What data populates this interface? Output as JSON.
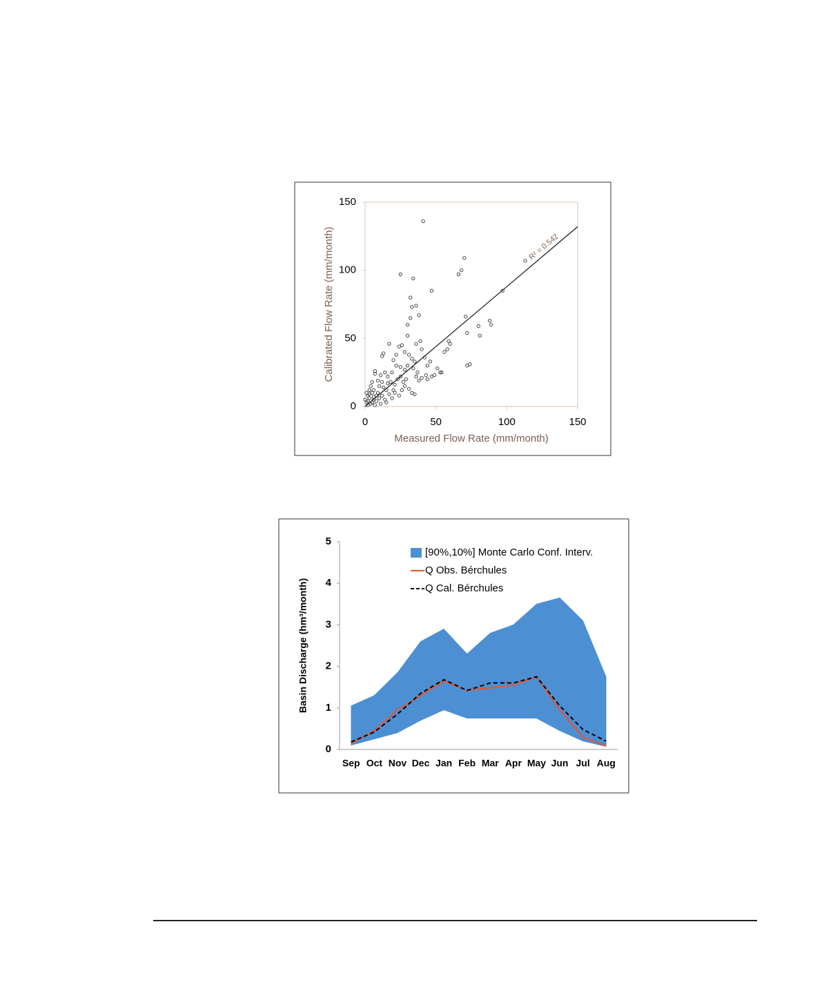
{
  "chart_data": [
    {
      "type": "scatter",
      "x_label": "Measured Flow Rate (mm/month)",
      "y_label": "Calibrated Flow Rate (mm/month)",
      "annotation": "R² = 0.542",
      "color": "#333333",
      "xlim": [
        0,
        150
      ],
      "ylim": [
        0,
        150
      ],
      "xticks": [
        0,
        50,
        100,
        150
      ],
      "yticks": [
        0,
        50,
        100,
        150
      ],
      "x": [
        41,
        25,
        34,
        47,
        66,
        68,
        70,
        113,
        97,
        32,
        33,
        36,
        30,
        32,
        38,
        71,
        80,
        88,
        89,
        81,
        72,
        74,
        72,
        59,
        60,
        58,
        56,
        51,
        53,
        54,
        46,
        44,
        42,
        40,
        39,
        36,
        30,
        24,
        26,
        22,
        17,
        13,
        12,
        7,
        7,
        20,
        22,
        25,
        28,
        31,
        33,
        35,
        28,
        36,
        38,
        40,
        43,
        44,
        47,
        49,
        28,
        26,
        24,
        20,
        18,
        16,
        14,
        12,
        10,
        9,
        8,
        6,
        5,
        4,
        3,
        2,
        1,
        2,
        3,
        4,
        5,
        6,
        8,
        10,
        12,
        14,
        15,
        17,
        19,
        21,
        23,
        25,
        27,
        29,
        31,
        33,
        35,
        15,
        11,
        7,
        1,
        0,
        2,
        9,
        11,
        13,
        16,
        19,
        21,
        5,
        3,
        6,
        30,
        34,
        37
      ],
      "values": [
        136,
        97,
        94,
        85,
        97,
        100,
        109,
        107,
        85,
        80,
        73,
        74,
        60,
        65,
        67,
        66,
        59,
        63,
        60,
        52,
        54,
        31,
        30,
        48,
        46,
        42,
        40,
        28,
        25,
        25,
        33,
        30,
        36,
        42,
        48,
        46,
        52,
        44,
        45,
        38,
        46,
        39,
        37,
        26,
        24,
        34,
        30,
        29,
        27,
        38,
        35,
        33,
        40,
        22,
        19,
        21,
        23,
        20,
        22,
        23,
        15,
        12,
        8,
        12,
        18,
        22,
        25,
        18,
        15,
        10,
        8,
        5,
        3,
        2,
        6,
        1,
        3,
        8,
        12,
        15,
        10,
        12,
        4,
        6,
        8,
        5,
        12,
        9,
        6,
        16,
        20,
        22,
        18,
        20,
        13,
        10,
        9,
        3,
        2,
        1,
        10,
        5,
        4,
        19,
        23,
        14,
        17,
        25,
        10,
        18,
        9,
        7,
        30,
        28,
        25
      ],
      "trend_line": {
        "x": [
          0,
          150
        ],
        "values": [
          0,
          132
        ]
      }
    },
    {
      "type": "line",
      "y_label": "Basin Discharge (hm³/month)",
      "categories": [
        "Sep",
        "Oct",
        "Nov",
        "Dec",
        "Jan",
        "Feb",
        "Mar",
        "Apr",
        "May",
        "Jun",
        "Jul",
        "Aug"
      ],
      "ylim": [
        0,
        5
      ],
      "yticks": [
        0,
        1,
        2,
        3,
        4,
        5
      ],
      "legend": "upper right",
      "series": [
        {
          "name": "[90%,10%] Monte Carlo Conf. Interv.",
          "color": "#4d8fd3",
          "style": "band",
          "values": [
            1.05,
            1.3,
            1.85,
            2.6,
            2.9,
            2.3,
            2.8,
            3.0,
            3.5,
            3.65,
            3.1,
            1.75
          ],
          "lower_values": [
            0.1,
            0.25,
            0.4,
            0.7,
            0.95,
            0.75,
            0.75,
            0.75,
            0.75,
            0.45,
            0.2,
            0.07
          ]
        },
        {
          "name": "Q Obs. Bérchules",
          "color": "#e8542c",
          "style": "solid",
          "values": [
            0.15,
            0.45,
            0.95,
            1.3,
            1.65,
            1.42,
            1.48,
            1.55,
            1.75,
            0.95,
            0.3,
            0.08
          ]
        },
        {
          "name": "Q Cal. Bérchules",
          "color": "#000000",
          "style": "dashed",
          "values": [
            0.18,
            0.42,
            0.85,
            1.35,
            1.68,
            1.42,
            1.6,
            1.6,
            1.75,
            1.05,
            0.48,
            0.2
          ]
        }
      ]
    }
  ]
}
